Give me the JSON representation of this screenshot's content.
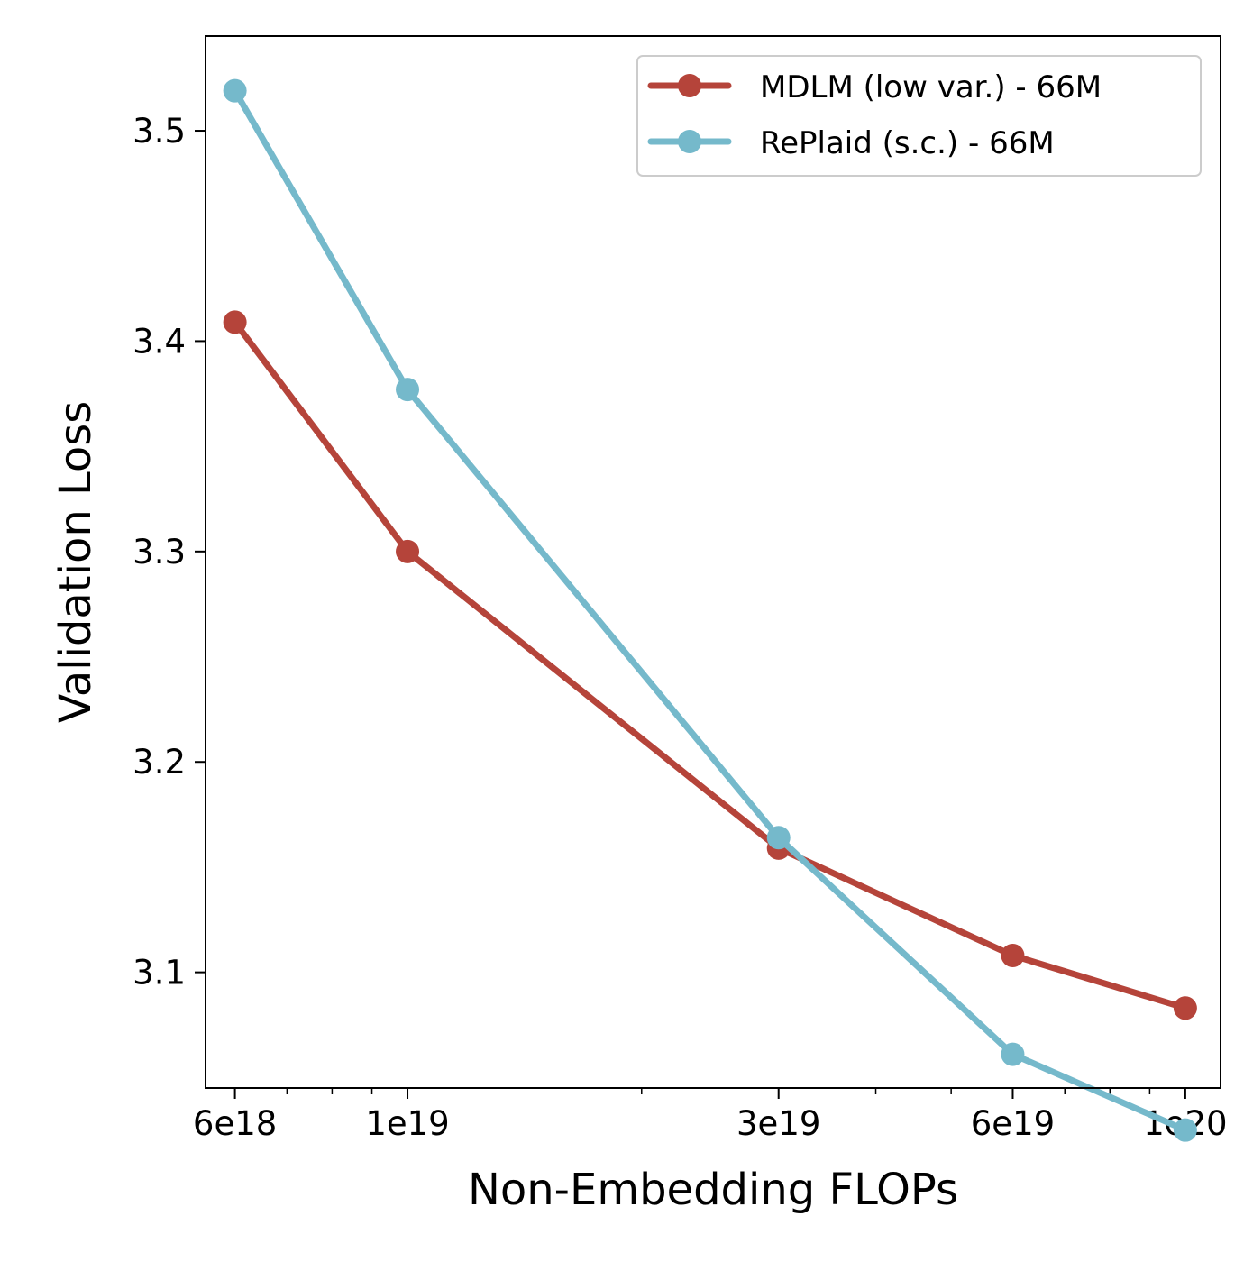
{
  "chart_data": {
    "type": "line",
    "xlabel": "Non-Embedding FLOPs",
    "ylabel": "Validation Loss",
    "xscale": "log",
    "xlim": [
      5.5e+18,
      1.11e+20
    ],
    "ylim": [
      3.045,
      3.545
    ],
    "xticks": [
      {
        "value": 6e+18,
        "label": "6e18"
      },
      {
        "value": 1e+19,
        "label": "1e19"
      },
      {
        "value": 3e+19,
        "label": "3e19"
      },
      {
        "value": 6e+19,
        "label": "6e19"
      },
      {
        "value": 1e+20,
        "label": "1e20"
      }
    ],
    "yticks": [
      {
        "value": 3.1,
        "label": "3.1"
      },
      {
        "value": 3.2,
        "label": "3.2"
      },
      {
        "value": 3.3,
        "label": "3.3"
      },
      {
        "value": 3.4,
        "label": "3.4"
      },
      {
        "value": 3.5,
        "label": "3.5"
      }
    ],
    "grid": false,
    "legend_position": "top-right",
    "series": [
      {
        "name": "MDLM (low var.) - 66M",
        "color": "#b5443a",
        "x": [
          6e+18,
          1e+19,
          3e+19,
          6e+19,
          1e+20
        ],
        "y": [
          3.409,
          3.3,
          3.159,
          3.108,
          3.083
        ]
      },
      {
        "name": "RePlaid (s.c.) - 66M",
        "color": "#75b9cb",
        "x": [
          6e+18,
          1e+19,
          3e+19,
          6e+19,
          1e+20
        ],
        "y": [
          3.519,
          3.377,
          3.164,
          3.061,
          3.025
        ]
      }
    ]
  }
}
